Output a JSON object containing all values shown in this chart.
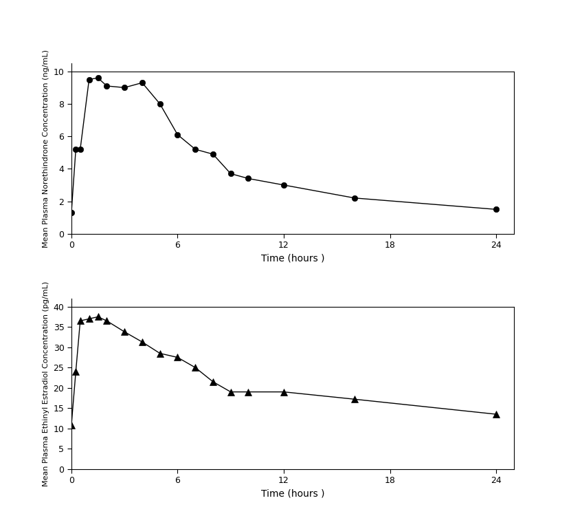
{
  "ne_time": [
    0,
    0.25,
    0.5,
    1,
    1.5,
    2,
    3,
    4,
    5,
    6,
    7,
    8,
    9,
    10,
    12,
    16,
    24
  ],
  "ne_conc": [
    1.3,
    5.2,
    5.2,
    9.5,
    9.6,
    9.1,
    9.0,
    9.3,
    8.0,
    6.1,
    5.2,
    4.9,
    3.7,
    3.4,
    3.0,
    2.2,
    1.5
  ],
  "ee_time": [
    0,
    0.25,
    0.5,
    1,
    1.5,
    2,
    3,
    4,
    5,
    6,
    7,
    8,
    9,
    10,
    12,
    16,
    24
  ],
  "ee_conc": [
    10.8,
    24.0,
    36.5,
    37.0,
    37.5,
    36.5,
    33.8,
    31.3,
    28.5,
    27.5,
    25.0,
    21.5,
    19.0,
    19.0,
    19.0,
    17.2,
    13.5
  ],
  "ne_ylabel": "Mean Plasma Norethindrone Concentration (ng/mL)",
  "ee_ylabel": "Mean Plasma Ethinyl Estradiol Concentration (pg/mL)",
  "xlabel": "Time (hours )",
  "ne_ylim": [
    0,
    10.5
  ],
  "ne_yticks": [
    0,
    2,
    4,
    6,
    8,
    10
  ],
  "ee_ylim": [
    0,
    42
  ],
  "ee_yticks": [
    0,
    5,
    10,
    15,
    20,
    25,
    30,
    35,
    40
  ],
  "xlim": [
    0,
    25
  ],
  "xticks": [
    0,
    6,
    12,
    18,
    24
  ],
  "xtick_labels": [
    "0",
    "6",
    "12",
    "18",
    "24"
  ],
  "line_color": "#000000",
  "marker_ne": "o",
  "marker_ee": "^",
  "markersize_ne": 6,
  "markersize_ee": 7,
  "linewidth": 1.0,
  "bg_color": "#ffffff",
  "spine_color": "#333333",
  "tick_labelsize": 9,
  "ylabel_fontsize": 8,
  "xlabel_fontsize": 10
}
